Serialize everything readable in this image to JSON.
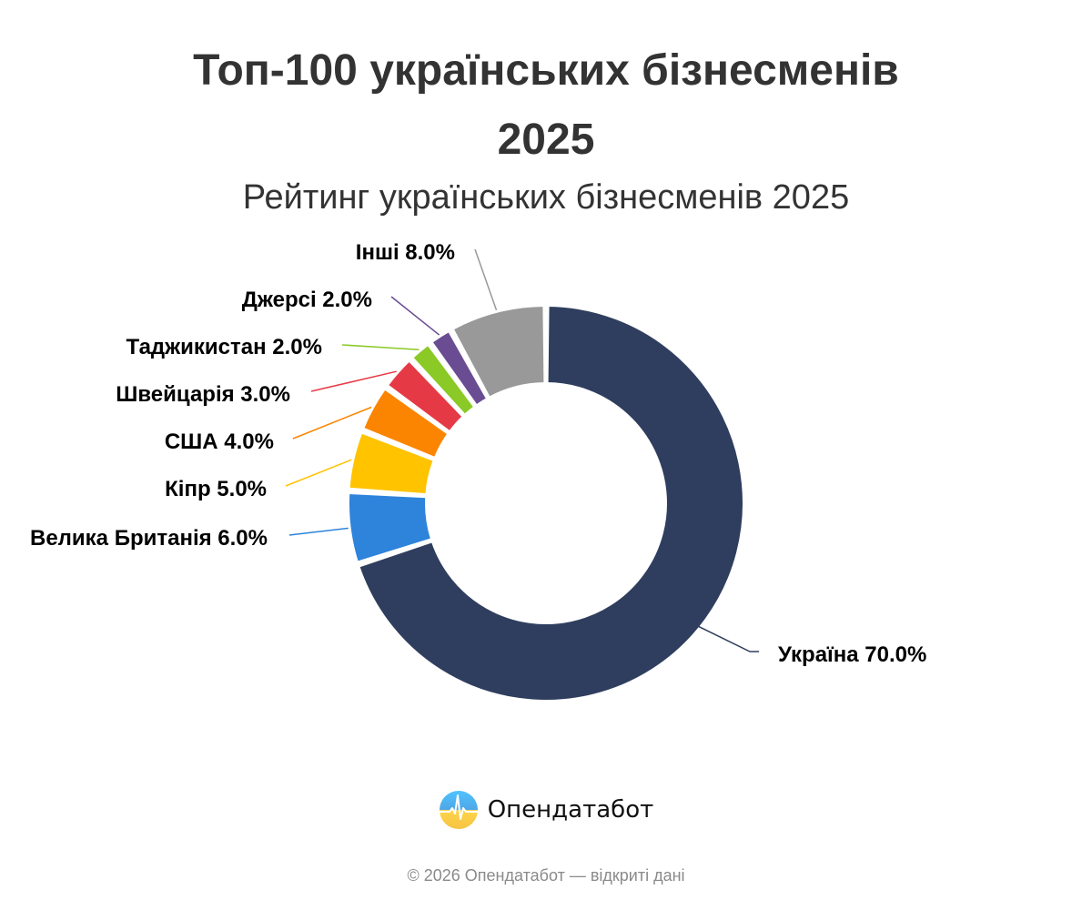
{
  "header": {
    "title_line1": "Топ-100 українських бізнесменів",
    "title_line2": "2025",
    "subtitle": "Рейтинг українських бізнесменів 2025"
  },
  "chart_data": {
    "type": "pie",
    "variant": "donut",
    "title": "Топ-100 українських бізнесменів 2025",
    "subtitle": "Рейтинг українських бізнесменів 2025",
    "start_angle": "12 o'clock, clockwise",
    "slices": [
      {
        "label": "Україна",
        "value": 70.0,
        "display": "Україна 70.0%",
        "color": "#2f3e5e"
      },
      {
        "label": "Велика Британія",
        "value": 6.0,
        "display": "Велика Британія 6.0%",
        "color": "#2e83db"
      },
      {
        "label": "Кіпр",
        "value": 5.0,
        "display": "Кіпр 5.0%",
        "color": "#ffc300"
      },
      {
        "label": "США",
        "value": 4.0,
        "display": "США 4.0%",
        "color": "#fb8500"
      },
      {
        "label": "Швейцарія",
        "value": 3.0,
        "display": "Швейцарія 3.0%",
        "color": "#e63946"
      },
      {
        "label": "Таджикистан",
        "value": 2.0,
        "display": "Таджикистан 2.0%",
        "color": "#8ac926"
      },
      {
        "label": "Джерсі",
        "value": 2.0,
        "display": "Джерсі 2.0%",
        "color": "#6a4c93"
      },
      {
        "label": "Інші",
        "value": 8.0,
        "display": "Інші 8.0%",
        "color": "#999999"
      }
    ],
    "legend": "none (data labels with leader lines)"
  },
  "branding": {
    "logo_text": "Опендатабот",
    "logo_icon": "opendatabot-logo-icon",
    "footer": "© 2026 Опендатабот — відкриті дані"
  }
}
